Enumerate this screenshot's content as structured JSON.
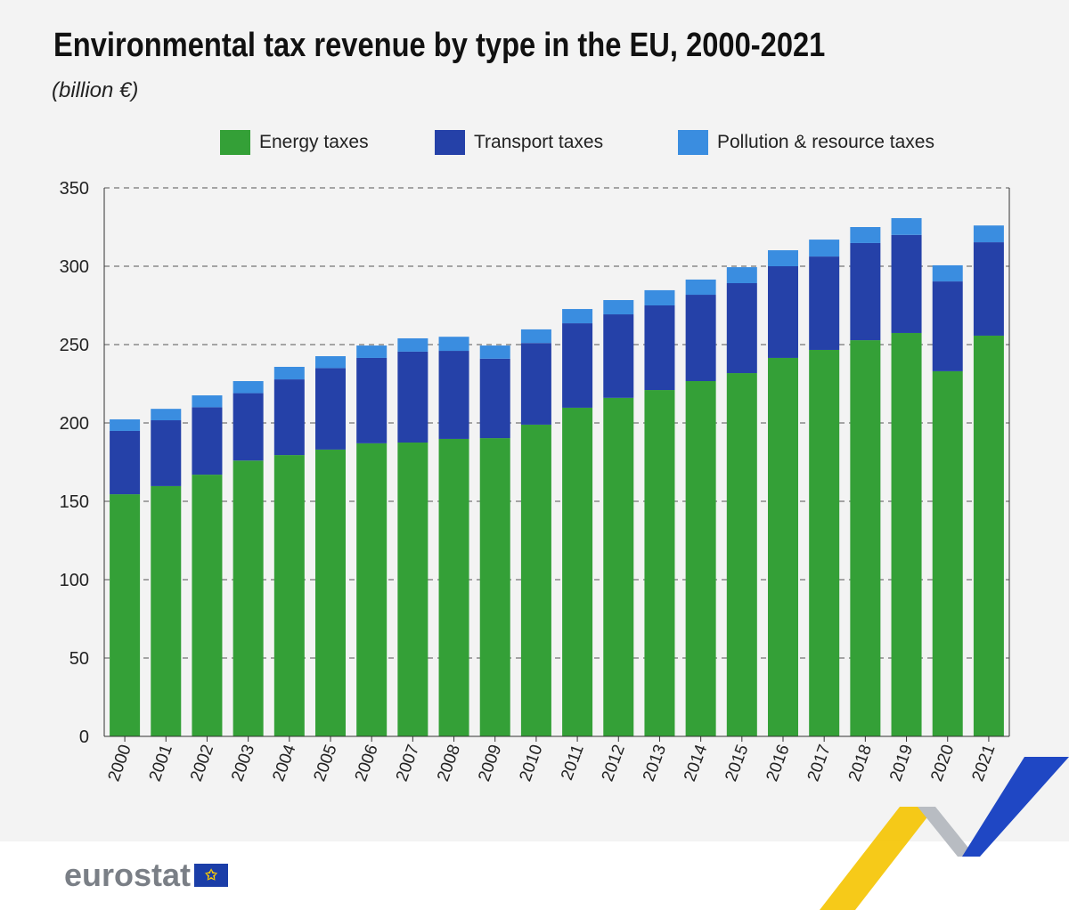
{
  "chart_data": {
    "type": "bar",
    "stacked": true,
    "title": "Environmental tax revenue by type in the EU, 2000-2021",
    "subtitle": "(billion €)",
    "xlabel": "",
    "ylabel": "",
    "ylim": [
      0,
      350
    ],
    "yticks": [
      0,
      50,
      100,
      150,
      200,
      250,
      300,
      350
    ],
    "grid": true,
    "legend_position": "top",
    "categories": [
      "2000",
      "2001",
      "2002",
      "2003",
      "2004",
      "2005",
      "2006",
      "2007",
      "2008",
      "2009",
      "2010",
      "2011",
      "2012",
      "2013",
      "2014",
      "2015",
      "2016",
      "2017",
      "2018",
      "2019",
      "2020",
      "2021"
    ],
    "series": [
      {
        "name": "Energy taxes",
        "color": "#34a037",
        "values": [
          154.5,
          159.7,
          167,
          176,
          179.5,
          183,
          187,
          187.5,
          189.8,
          190.3,
          198.9,
          209.7,
          216,
          221,
          226.7,
          231.8,
          241.5,
          246.6,
          252.8,
          257.4,
          233,
          255.7
        ]
      },
      {
        "name": "Transport taxes",
        "color": "#2541a8",
        "values": [
          40.4,
          42,
          43,
          43,
          48.3,
          52,
          54.5,
          58,
          56.2,
          50.7,
          52.1,
          53.9,
          53.3,
          54,
          55.1,
          57.4,
          58.5,
          59.6,
          62,
          62.6,
          57.3,
          59.6
        ]
      },
      {
        "name": "Pollution & resource taxes",
        "color": "#3a8de0",
        "values": [
          7.4,
          7.3,
          7.6,
          7.7,
          8,
          7.6,
          7.9,
          8.5,
          9,
          8.4,
          8.7,
          9.1,
          9.1,
          9.7,
          9.7,
          10.2,
          10.2,
          10.8,
          10.2,
          10.7,
          10.3,
          10.7
        ]
      }
    ]
  },
  "branding": {
    "logo_text": "eurostat"
  }
}
